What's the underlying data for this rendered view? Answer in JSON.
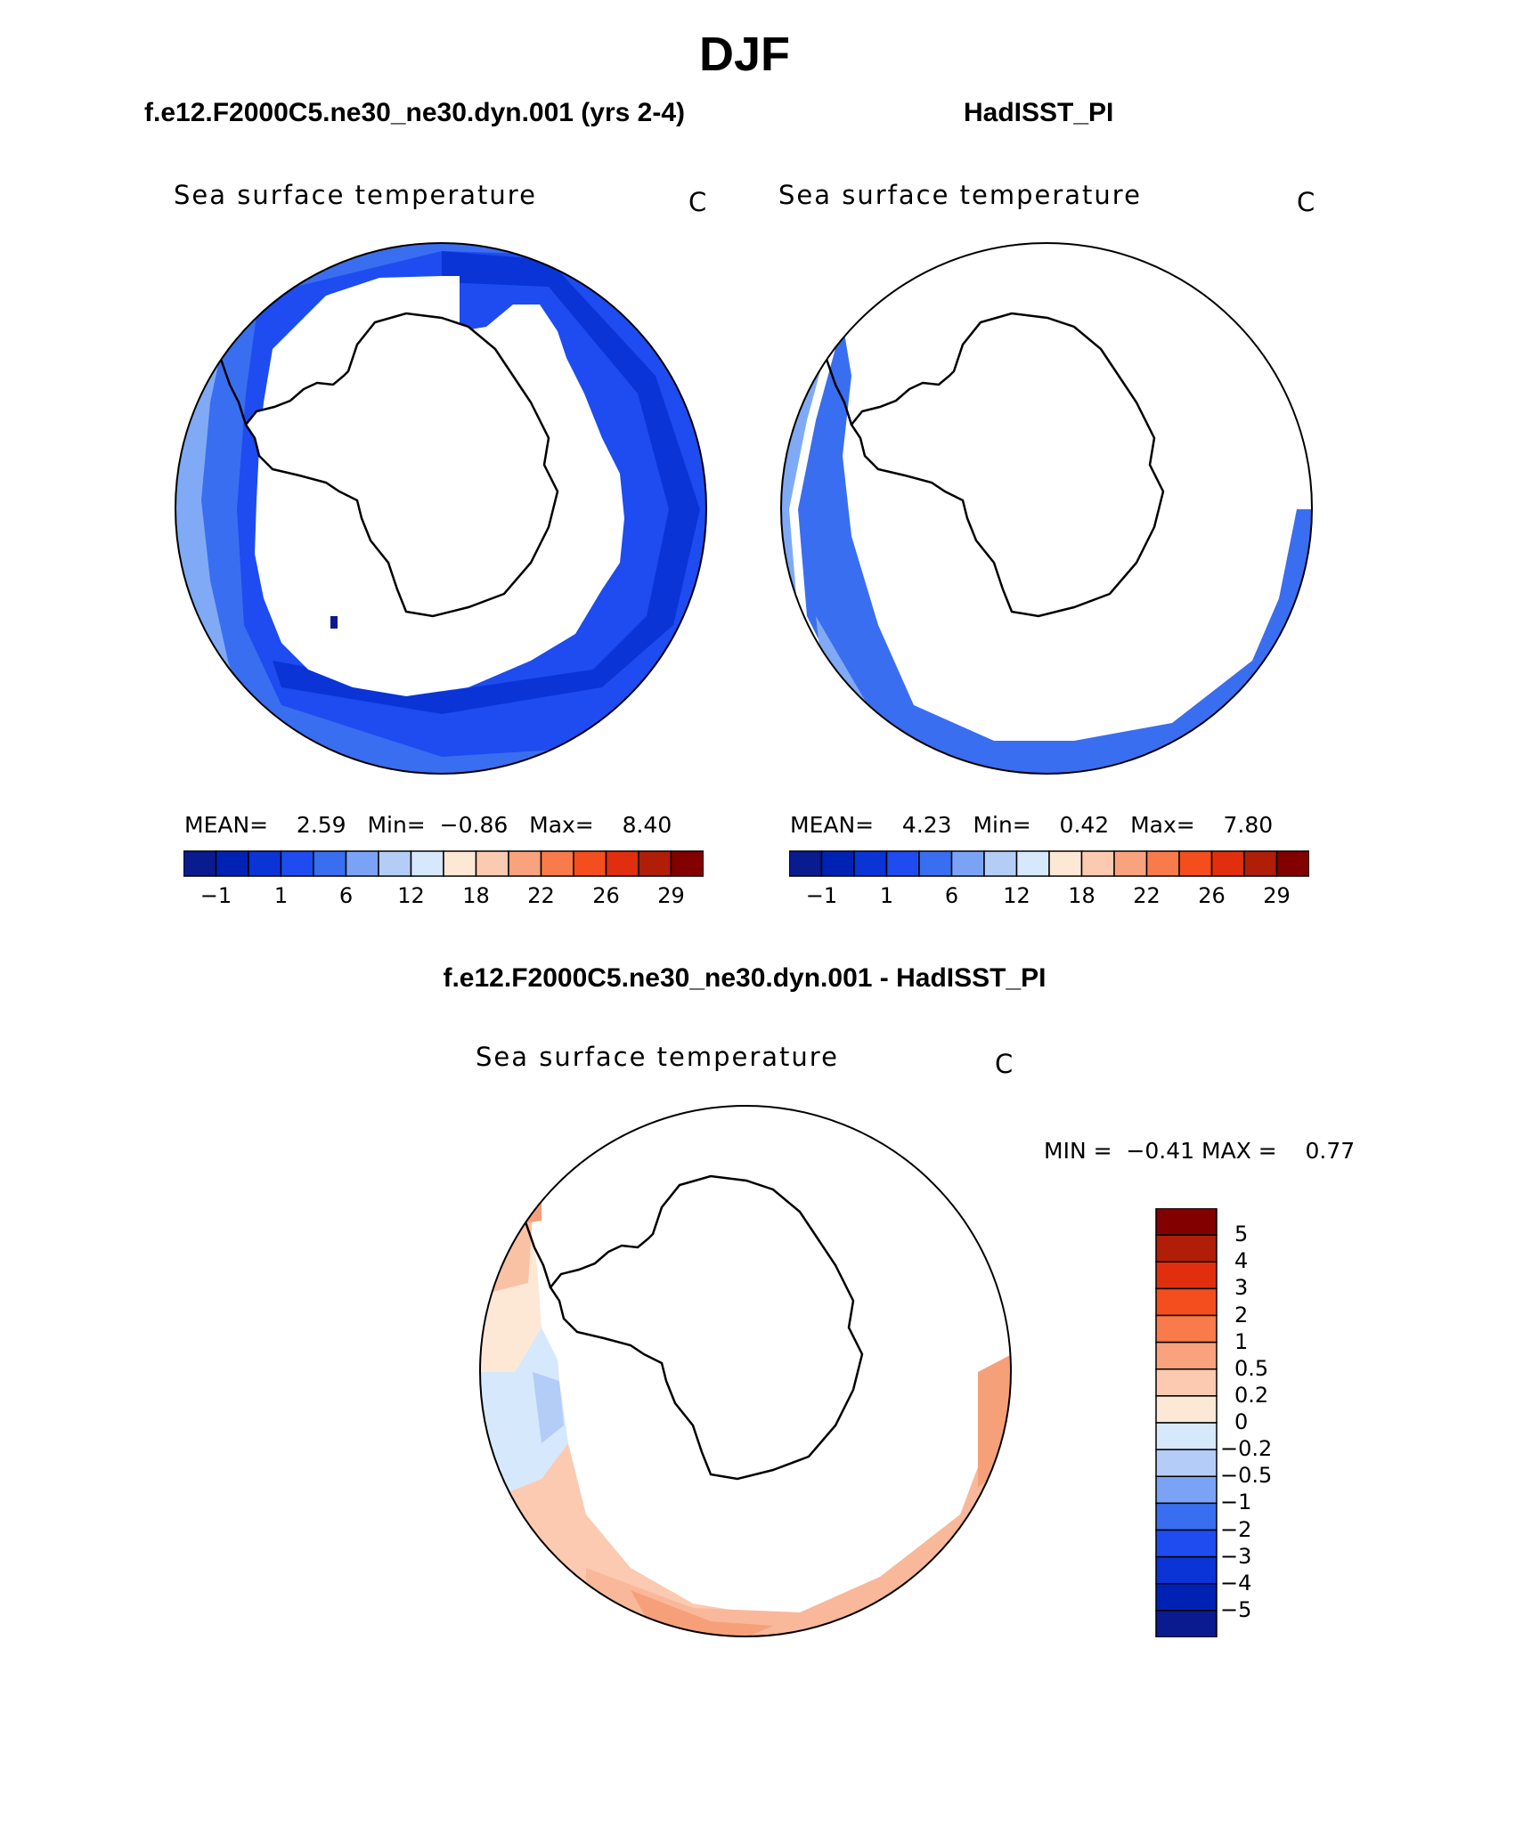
{
  "title": "DJF",
  "panels": {
    "model": {
      "title": "f.e12.F2000C5.ne30_ne30.dyn.001 (yrs 2-4)",
      "variable": "Sea surface temperature",
      "units": "C",
      "mean_label": "MEAN=",
      "mean": "2.59",
      "min_label": "Min=",
      "min": "−0.86",
      "max_label": "Max=",
      "max": "8.40"
    },
    "obs": {
      "title": "HadISST_PI",
      "variable": "Sea surface temperature",
      "units": "C",
      "mean_label": "MEAN=",
      "mean": "4.23",
      "min_label": "Min=",
      "min": "0.42",
      "max_label": "Max=",
      "max": "7.80"
    },
    "diff": {
      "title": "f.e12.F2000C5.ne30_ne30.dyn.001 - HadISST_PI",
      "variable": "Sea surface temperature",
      "units": "C",
      "min_label": "MIN =",
      "min": "−0.41",
      "max_label": "MAX =",
      "max": "0.77"
    }
  },
  "colorbar_abs": {
    "colors": [
      "#0a1a8f",
      "#0022b4",
      "#0a34d6",
      "#1e4cf0",
      "#3a6ef0",
      "#7aa3f5",
      "#b3cdf7",
      "#d6e8fb",
      "#fde8d6",
      "#fbcab0",
      "#f9a27e",
      "#f97a4a",
      "#f44d1e",
      "#e02e0e",
      "#b01e08",
      "#820000"
    ],
    "tick_labels": [
      "−1",
      "1",
      "6",
      "12",
      "18",
      "22",
      "26",
      "29"
    ]
  },
  "colorbar_diff": {
    "colors_top_to_bottom": [
      "#820000",
      "#b01e08",
      "#e02e0e",
      "#f44d1e",
      "#f97a4a",
      "#f9a27e",
      "#fbcab0",
      "#fde8d6",
      "#d6e8fb",
      "#b3cdf7",
      "#7aa3f5",
      "#3a6ef0",
      "#1e4cf0",
      "#0a34d6",
      "#0022b4",
      "#0a1a8f"
    ],
    "tick_labels": [
      "5",
      "4",
      "3",
      "2",
      "1",
      "0.5",
      "0.2",
      "0",
      "−0.2",
      "−0.5",
      "−1",
      "−2",
      "−3",
      "−4",
      "−5"
    ]
  },
  "map_colors": {
    "model_outer": "#80aaf5",
    "model_mid": "#3a6ef0",
    "model_inner": "#1e4cf0",
    "model_ice_edge": "#0a34d6",
    "obs_outer": "#80aaf5",
    "obs_inner": "#3a6ef0",
    "diff_warm": "#f9b89a",
    "diff_warmer": "#f6a07a",
    "diff_light": "#fde8d6",
    "diff_cool": "#d6e8fb"
  }
}
